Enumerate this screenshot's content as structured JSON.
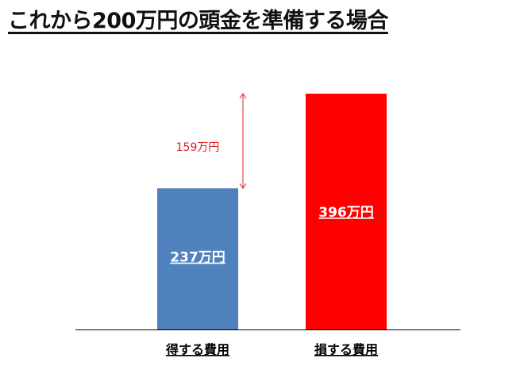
{
  "title": "これから200万円の頭金を準備する場合",
  "chart_data": {
    "type": "bar",
    "categories": [
      "得する費用",
      "損する費用"
    ],
    "values": [
      237,
      396
    ],
    "value_labels": [
      "237万円",
      "396万円"
    ],
    "bar_colors": [
      "#4f81bd",
      "#ff0000"
    ],
    "difference": {
      "value": 159,
      "label": "159万円",
      "color": "#e02020"
    },
    "xlabel": "",
    "ylabel": "",
    "ylim": [
      0,
      396
    ],
    "grid": false,
    "legend": "none"
  }
}
